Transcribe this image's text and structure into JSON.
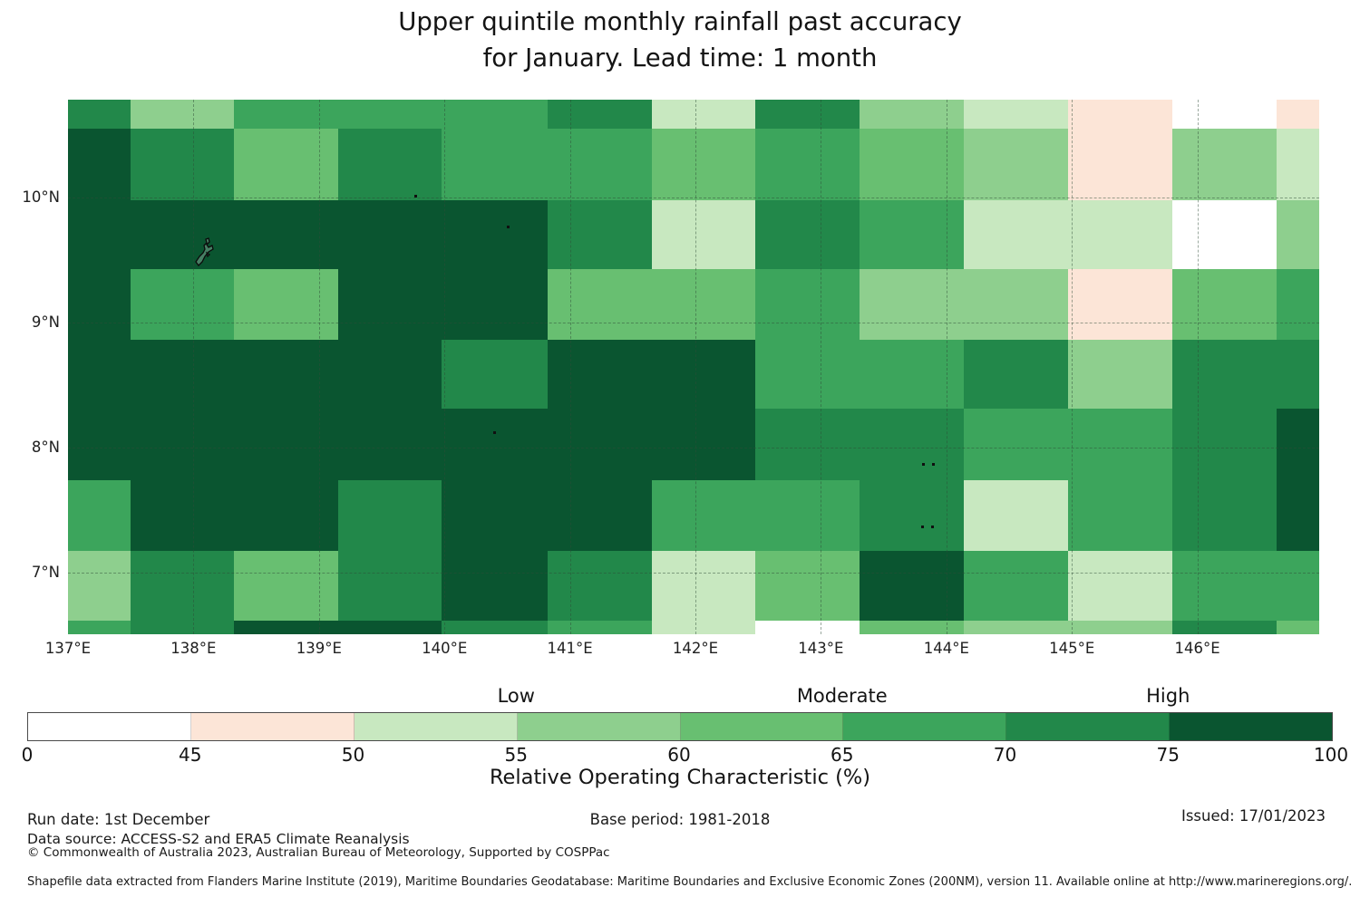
{
  "title": {
    "line1": "Upper quintile monthly rainfall past accuracy",
    "line2": "for January. Lead time: 1 month"
  },
  "chart_data": {
    "type": "heatmap",
    "title": "Upper quintile monthly rainfall past accuracy for January. Lead time: 1 month",
    "xlabel": "",
    "ylabel": "",
    "x_ticks": [
      {
        "v": 137,
        "label": "137°E"
      },
      {
        "v": 138,
        "label": "138°E"
      },
      {
        "v": 139,
        "label": "139°E"
      },
      {
        "v": 140,
        "label": "140°E"
      },
      {
        "v": 141,
        "label": "141°E"
      },
      {
        "v": 142,
        "label": "142°E"
      },
      {
        "v": 143,
        "label": "143°E"
      },
      {
        "v": 144,
        "label": "144°E"
      },
      {
        "v": 145,
        "label": "145°E"
      },
      {
        "v": 146,
        "label": "146°E"
      }
    ],
    "y_ticks": [
      {
        "v": 10,
        "label": "10°N"
      },
      {
        "v": 9,
        "label": "9°N"
      },
      {
        "v": 8,
        "label": "8°N"
      },
      {
        "v": 7,
        "label": "7°N"
      }
    ],
    "lon_range": [
      137.0,
      146.97
    ],
    "lat_range": [
      6.51,
      10.78
    ],
    "lon_edges": [
      137.0,
      137.5,
      138.32,
      139.15,
      139.98,
      140.82,
      141.65,
      142.48,
      143.31,
      144.14,
      144.97,
      145.8,
      146.63,
      146.97
    ],
    "lat_edges": [
      10.78,
      10.55,
      9.98,
      9.43,
      8.86,
      8.31,
      7.74,
      7.18,
      6.62,
      6.51
    ],
    "values": [
      [
        72,
        57,
        67,
        67,
        67,
        72,
        52,
        72,
        57,
        52,
        47,
        22,
        47
      ],
      [
        85,
        72,
        62,
        72,
        67,
        67,
        62,
        67,
        62,
        57,
        47,
        57,
        52
      ],
      [
        85,
        85,
        85,
        85,
        85,
        72,
        52,
        72,
        67,
        52,
        52,
        22,
        57
      ],
      [
        85,
        67,
        62,
        85,
        85,
        62,
        62,
        67,
        57,
        57,
        47,
        62,
        67
      ],
      [
        85,
        85,
        85,
        85,
        72,
        85,
        85,
        67,
        67,
        72,
        57,
        72,
        72
      ],
      [
        85,
        85,
        85,
        85,
        85,
        85,
        85,
        72,
        72,
        67,
        67,
        72,
        85
      ],
      [
        67,
        85,
        85,
        72,
        85,
        85,
        67,
        67,
        72,
        52,
        67,
        72,
        85
      ],
      [
        57,
        72,
        62,
        72,
        85,
        72,
        52,
        62,
        85,
        67,
        52,
        67,
        67
      ],
      [
        67,
        72,
        85,
        85,
        72,
        67,
        52,
        22,
        62,
        57,
        57,
        72,
        62
      ]
    ],
    "bins": [
      {
        "max": 45,
        "color": "#ffffff",
        "label": "0-45"
      },
      {
        "max": 50,
        "color": "#fce5d7",
        "label": "45-50"
      },
      {
        "max": 55,
        "color": "#c8e8c0",
        "label": "50-55"
      },
      {
        "max": 60,
        "color": "#8ecf8e",
        "label": "55-60"
      },
      {
        "max": 65,
        "color": "#68bf71",
        "label": "60-65"
      },
      {
        "max": 70,
        "color": "#3ca55c",
        "label": "65-70"
      },
      {
        "max": 75,
        "color": "#22884a",
        "label": "70-75"
      },
      {
        "max": 100,
        "color": "#0a5530",
        "label": "75-100"
      }
    ],
    "gridline_lons": [
      138,
      139,
      140,
      141,
      142,
      143,
      144,
      145,
      146
    ],
    "gridline_lats": [
      7,
      8,
      9,
      10
    ],
    "coast_markers": [
      {
        "type": "outline",
        "lon": 138.07,
        "lat": 9.56
      },
      {
        "type": "dot",
        "lon": 139.77,
        "lat": 10.01
      },
      {
        "type": "dot",
        "lon": 140.51,
        "lat": 9.76
      },
      {
        "type": "dot",
        "lon": 140.4,
        "lat": 8.12
      },
      {
        "type": "dot",
        "lon": 143.82,
        "lat": 7.87
      },
      {
        "type": "dot",
        "lon": 143.9,
        "lat": 7.87
      },
      {
        "type": "dot",
        "lon": 143.81,
        "lat": 7.37
      },
      {
        "type": "dot",
        "lon": 143.89,
        "lat": 7.37
      }
    ]
  },
  "colorbar": {
    "title": "Relative Operating Characteristic (%)",
    "tick_labels": [
      "0",
      "45",
      "50",
      "55",
      "60",
      "65",
      "70",
      "75",
      "100"
    ],
    "category_labels": [
      {
        "text": "Low",
        "boundary_index": 3
      },
      {
        "text": "Moderate",
        "boundary_index": 5
      },
      {
        "text": "High",
        "boundary_index": 7
      }
    ]
  },
  "footer": {
    "run_date": "Run date: 1st December",
    "base_period": "Base period: 1981-2018",
    "issued": "Issued: 17/01/2023",
    "data_source": "Data source: ACCESS-S2 and ERA5 Climate Reanalysis",
    "copyright": "© Commonwealth of Australia 2023, Australian Bureau of Meteorology, Supported by COSPPac",
    "shapefile": "Shapefile data extracted from Flanders Marine Institute (2019), Maritime Boundaries Geodatabase: Maritime Boundaries and Exclusive Economic Zones (200NM), version 11. Available online at http://www.marineregions.org/."
  }
}
